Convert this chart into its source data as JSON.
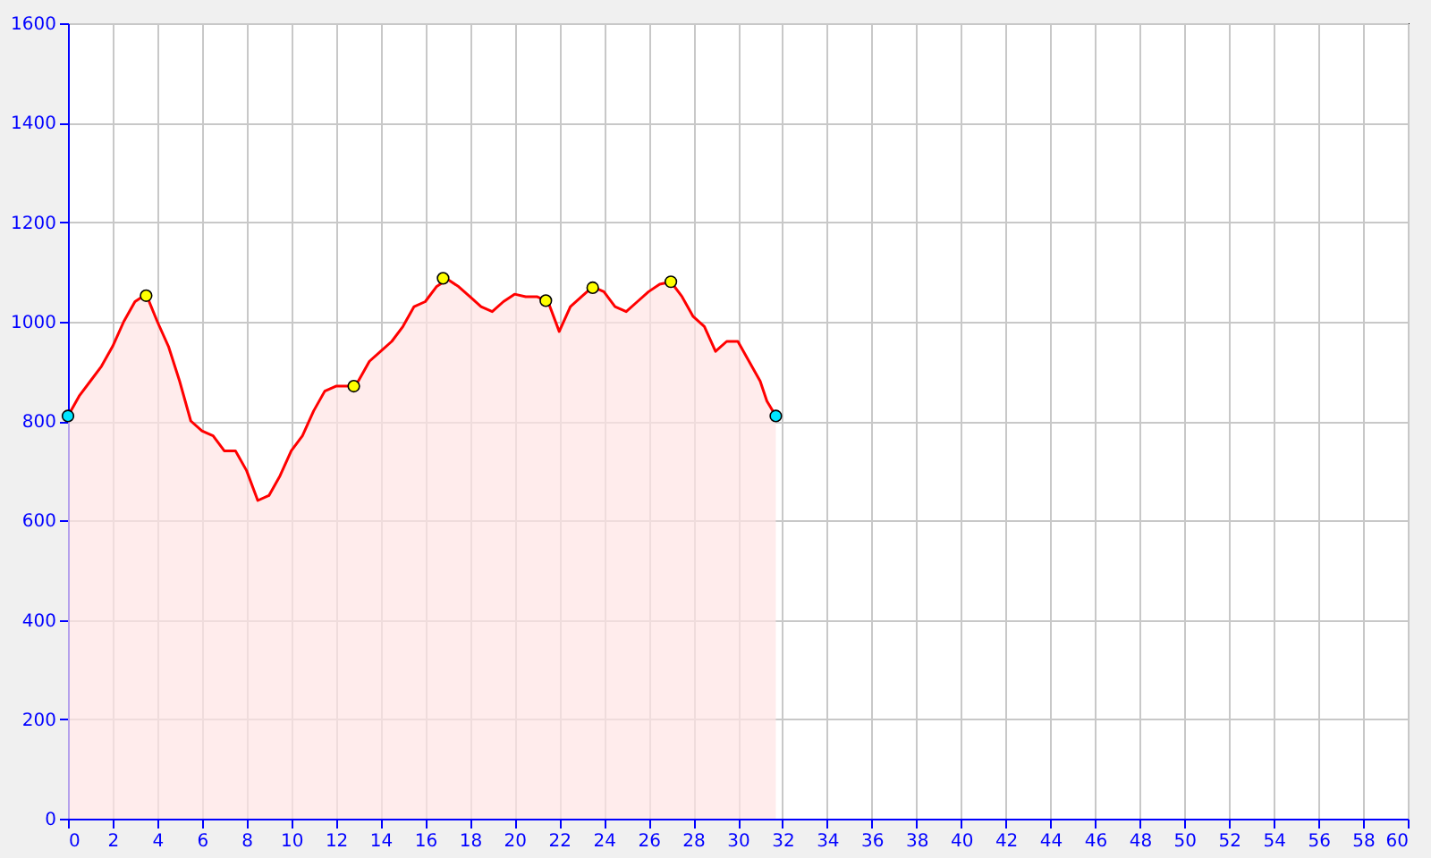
{
  "chart_data": {
    "type": "area",
    "xlim": [
      0,
      60
    ],
    "ylim": [
      0,
      1600
    ],
    "xticks": [
      0,
      2,
      4,
      6,
      8,
      10,
      12,
      14,
      16,
      18,
      20,
      22,
      24,
      26,
      28,
      30,
      32,
      34,
      36,
      38,
      40,
      42,
      44,
      46,
      48,
      50,
      52,
      54,
      56,
      58,
      60
    ],
    "yticks": [
      0,
      200,
      400,
      600,
      800,
      1000,
      1200,
      1400,
      1600
    ],
    "grid": true,
    "series": [
      {
        "type": "area",
        "color": "#ff0000",
        "x": [
          0,
          0.5,
          1,
          1.5,
          2,
          2.5,
          3,
          3.5,
          4,
          4.5,
          5,
          5.5,
          6,
          6.5,
          7,
          7.5,
          8,
          8.5,
          9,
          9.5,
          10,
          10.5,
          11,
          11.5,
          12,
          12.5,
          13,
          13.5,
          14,
          14.5,
          15,
          15.5,
          16,
          16.5,
          17,
          17.5,
          18,
          18.5,
          19,
          19.5,
          20,
          20.5,
          21,
          21.5,
          22,
          22.5,
          23,
          23.5,
          24,
          24.5,
          25,
          25.5,
          26,
          26.5,
          27,
          27.5,
          28,
          28.5,
          29,
          29.5,
          30,
          30.5,
          31,
          31.3,
          31.7
        ],
        "values": [
          810,
          850,
          880,
          910,
          950,
          1000,
          1040,
          1055,
          1000,
          950,
          880,
          800,
          780,
          770,
          740,
          740,
          700,
          640,
          650,
          690,
          740,
          770,
          820,
          860,
          870,
          870,
          880,
          920,
          940,
          960,
          990,
          1030,
          1040,
          1070,
          1085,
          1070,
          1050,
          1030,
          1020,
          1040,
          1055,
          1050,
          1050,
          1040,
          980,
          1030,
          1050,
          1070,
          1060,
          1030,
          1020,
          1040,
          1060,
          1075,
          1080,
          1050,
          1010,
          990,
          940,
          960,
          960,
          920,
          880,
          840,
          810
        ]
      },
      {
        "type": "scatter",
        "color": "#ffff00",
        "marker": "circle",
        "x": [
          3.5,
          12.8,
          16.8,
          21.4,
          23.5,
          27
        ],
        "values": [
          1052,
          870,
          1087,
          1042,
          1068,
          1080
        ]
      },
      {
        "type": "scatter",
        "color": "#00e5ff",
        "marker": "circle",
        "x": [
          0,
          31.7
        ],
        "values": [
          810,
          810
        ]
      }
    ]
  }
}
